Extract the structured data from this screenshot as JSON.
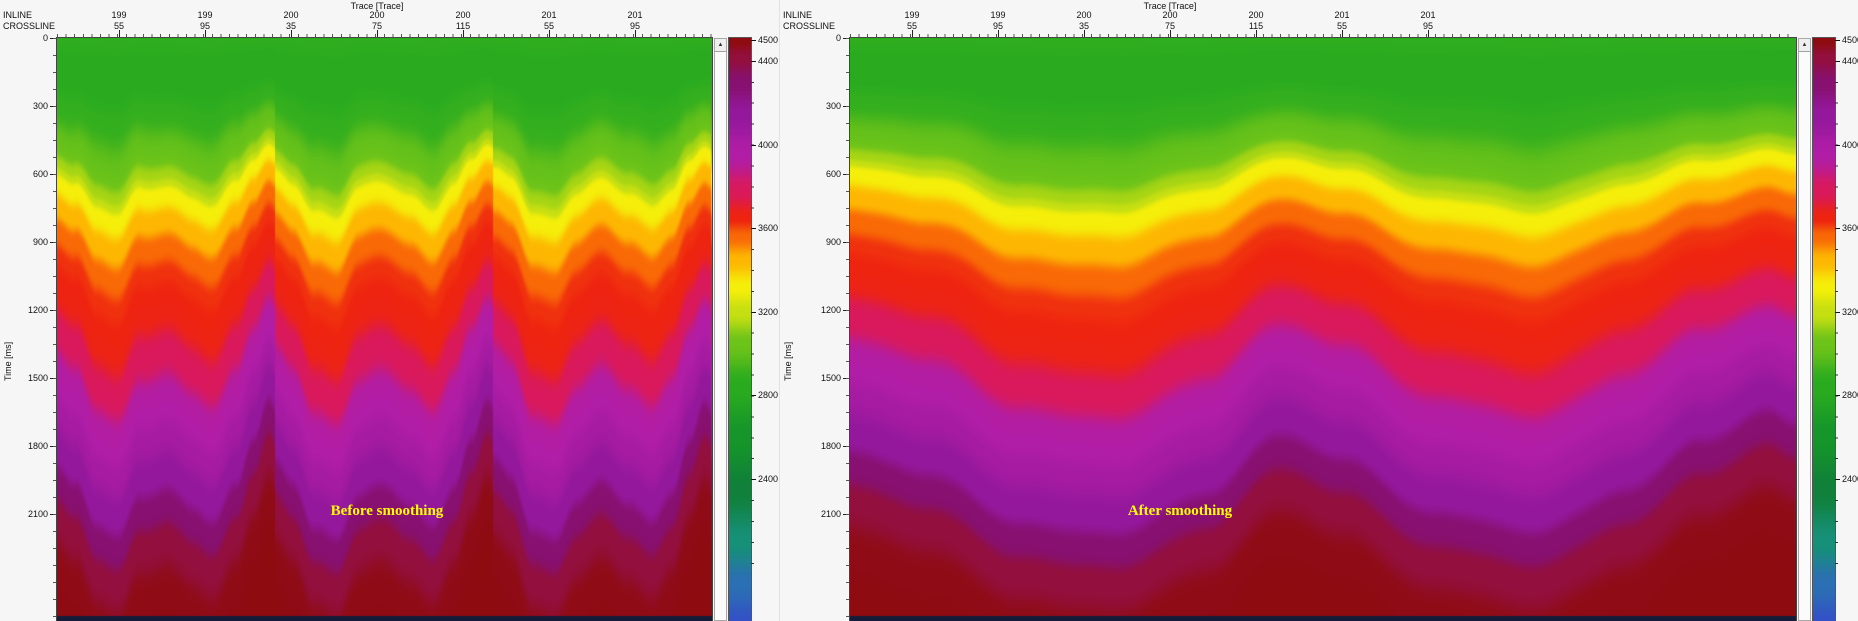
{
  "colors": {
    "window_bg": "#f1f1f1",
    "panel_bg": "#f6f6f6",
    "annotation": "#ffff00"
  },
  "axes": {
    "top_title": "Trace [Trace]",
    "inline_label": "INLINE",
    "crossline_label": "CROSSLINE",
    "time_label": "Time [ms]",
    "x_ticks": [
      {
        "inline": "199",
        "crossline": "55"
      },
      {
        "inline": "199",
        "crossline": "95"
      },
      {
        "inline": "200",
        "crossline": "35"
      },
      {
        "inline": "200",
        "crossline": "75"
      },
      {
        "inline": "200",
        "crossline": "115"
      },
      {
        "inline": "201",
        "crossline": "55"
      },
      {
        "inline": "201",
        "crossline": "95"
      }
    ],
    "y_ticks": [
      "0",
      "300",
      "600",
      "900",
      "1200",
      "1500",
      "1800",
      "2100"
    ],
    "colorbar_ticks": [
      "4500",
      "4400",
      "4000",
      "3600",
      "3200",
      "2800",
      "2400"
    ]
  },
  "panels": [
    {
      "annotation": "Before smoothing"
    },
    {
      "annotation": "After smoothing"
    }
  ],
  "scrollbar": {
    "up_arrow": "▲"
  },
  "chart_data": [
    {
      "type": "heatmap",
      "title": "Before smoothing",
      "xlabel": "Trace [Trace]",
      "ylabel": "Time [ms]",
      "x_tick_labels": [
        [
          "199",
          "55"
        ],
        [
          "199",
          "95"
        ],
        [
          "200",
          "35"
        ],
        [
          "200",
          "75"
        ],
        [
          "200",
          "115"
        ],
        [
          "201",
          "55"
        ],
        [
          "201",
          "95"
        ]
      ],
      "y_ticks_ms": [
        0,
        300,
        600,
        900,
        1200,
        1500,
        1800,
        2100
      ],
      "visible_time_range_ms": [
        0,
        2570
      ],
      "colorbar": {
        "range": [
          1700,
          4500
        ],
        "tick_values": [
          4500,
          4400,
          4000,
          3600,
          3200,
          2800,
          2400
        ]
      },
      "colormap": [
        [
          1700,
          "#3450c8"
        ],
        [
          1900,
          "#2b6fb4"
        ],
        [
          2100,
          "#169078"
        ],
        [
          2350,
          "#10803a"
        ],
        [
          2600,
          "#15952a"
        ],
        [
          2850,
          "#2aab1f"
        ],
        [
          3050,
          "#6cc319"
        ],
        [
          3200,
          "#c6df12"
        ],
        [
          3320,
          "#f5ef0a"
        ],
        [
          3450,
          "#fdb702"
        ],
        [
          3560,
          "#f96a06"
        ],
        [
          3650,
          "#ee2410"
        ],
        [
          3780,
          "#d9195c"
        ],
        [
          3950,
          "#b11da6"
        ],
        [
          4150,
          "#94189c"
        ],
        [
          4300,
          "#871070"
        ],
        [
          4420,
          "#930f3d"
        ],
        [
          4500,
          "#8e0b10"
        ]
      ],
      "velocity_profile_t_v": [
        [
          0,
          2890
        ],
        [
          140,
          2830
        ],
        [
          300,
          2900
        ],
        [
          460,
          3010
        ],
        [
          560,
          3140
        ],
        [
          650,
          3330
        ],
        [
          760,
          3450
        ],
        [
          870,
          3560
        ],
        [
          980,
          3625
        ],
        [
          1150,
          3670
        ],
        [
          1320,
          3780
        ],
        [
          1500,
          3930
        ],
        [
          1700,
          4040
        ],
        [
          1850,
          4140
        ],
        [
          2000,
          4300
        ],
        [
          2150,
          4420
        ],
        [
          2350,
          4480
        ],
        [
          2700,
          4500
        ]
      ],
      "lateral_time_shift_ms": [
        [
          0,
          -30
        ],
        [
          0.08,
          10
        ],
        [
          0.18,
          120
        ],
        [
          0.28,
          145
        ],
        [
          0.38,
          60
        ],
        [
          0.5,
          25
        ],
        [
          0.62,
          70
        ],
        [
          0.72,
          105
        ],
        [
          0.82,
          30
        ],
        [
          0.9,
          -80
        ],
        [
          0.97,
          -170
        ],
        [
          1,
          -150
        ]
      ],
      "strips": 3,
      "wiggle_amp_ms": 16
    },
    {
      "type": "heatmap",
      "title": "After smoothing",
      "xlabel": "Trace [Trace]",
      "ylabel": "Time [ms]",
      "x_tick_labels": [
        [
          "199",
          "55"
        ],
        [
          "199",
          "95"
        ],
        [
          "200",
          "35"
        ],
        [
          "200",
          "75"
        ],
        [
          "200",
          "115"
        ],
        [
          "201",
          "55"
        ],
        [
          "201",
          "95"
        ]
      ],
      "y_ticks_ms": [
        0,
        300,
        600,
        900,
        1200,
        1500,
        1800,
        2100
      ],
      "visible_time_range_ms": [
        0,
        2570
      ],
      "colorbar": {
        "range": [
          1700,
          4500
        ],
        "tick_values": [
          4500,
          4400,
          4000,
          3600,
          3200,
          2800,
          2400
        ]
      },
      "colormap": [
        [
          1700,
          "#3450c8"
        ],
        [
          1900,
          "#2b6fb4"
        ],
        [
          2100,
          "#169078"
        ],
        [
          2350,
          "#10803a"
        ],
        [
          2600,
          "#15952a"
        ],
        [
          2850,
          "#2aab1f"
        ],
        [
          3050,
          "#6cc319"
        ],
        [
          3200,
          "#c6df12"
        ],
        [
          3320,
          "#f5ef0a"
        ],
        [
          3450,
          "#fdb702"
        ],
        [
          3560,
          "#f96a06"
        ],
        [
          3650,
          "#ee2410"
        ],
        [
          3780,
          "#d9195c"
        ],
        [
          3950,
          "#b11da6"
        ],
        [
          4150,
          "#94189c"
        ],
        [
          4300,
          "#871070"
        ],
        [
          4420,
          "#930f3d"
        ],
        [
          4500,
          "#8e0b10"
        ]
      ],
      "velocity_profile_t_v": [
        [
          0,
          2890
        ],
        [
          140,
          2830
        ],
        [
          300,
          2900
        ],
        [
          460,
          3010
        ],
        [
          560,
          3140
        ],
        [
          650,
          3330
        ],
        [
          760,
          3450
        ],
        [
          870,
          3560
        ],
        [
          980,
          3625
        ],
        [
          1150,
          3670
        ],
        [
          1320,
          3780
        ],
        [
          1500,
          3930
        ],
        [
          1700,
          4040
        ],
        [
          1850,
          4140
        ],
        [
          2000,
          4300
        ],
        [
          2150,
          4420
        ],
        [
          2350,
          4480
        ],
        [
          2700,
          4500
        ]
      ],
      "lateral_time_shift_ms": [
        [
          0,
          -60
        ],
        [
          0.08,
          0
        ],
        [
          0.18,
          110
        ],
        [
          0.28,
          140
        ],
        [
          0.38,
          40
        ],
        [
          0.45,
          -90
        ],
        [
          0.52,
          -40
        ],
        [
          0.62,
          90
        ],
        [
          0.72,
          130
        ],
        [
          0.82,
          40
        ],
        [
          0.9,
          -80
        ],
        [
          0.97,
          -150
        ],
        [
          1,
          -120
        ]
      ],
      "strips": 1,
      "wiggle_amp_ms": 7
    }
  ]
}
